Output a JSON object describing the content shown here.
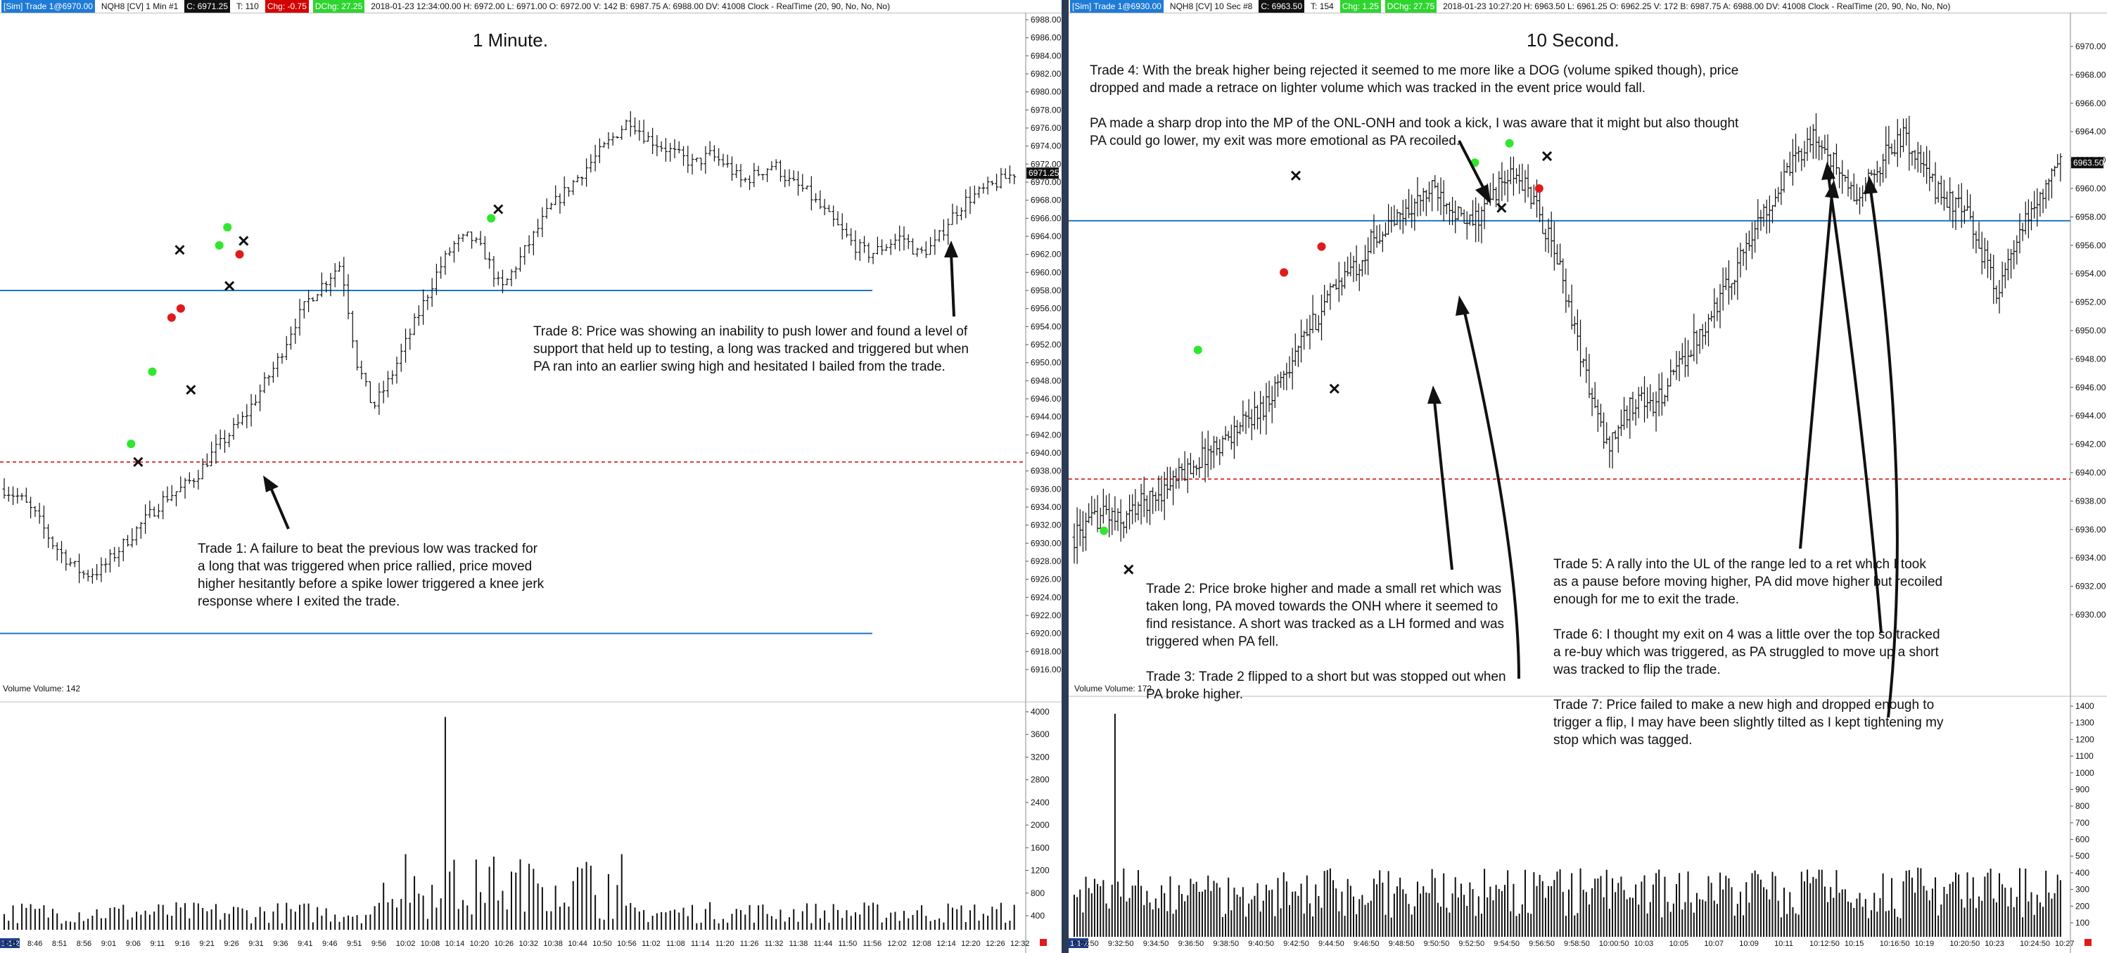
{
  "left": {
    "status": {
      "account": "[Sim]  Trade 1@6970.00",
      "instrument": "NQH8 [CV]  1 Min  #1",
      "close": "C: 6971.25",
      "ticks": "T: 110",
      "chg": "Chg: -0.75",
      "dchg": "DChg: 27.25",
      "info": "2018-01-23 12:34:00.00 H: 6972.00 L: 6971.00 O: 6972.00 V: 142 B: 6987.75 A: 6988.00 DV: 41008 Clock - RealTime   (20, 90, No, No, No)"
    },
    "title": "1 Minute.",
    "price_tag": "6971.25",
    "volume_label": "Volume  Volume: 142",
    "notes": {
      "trade1": "Trade 1:  A failure to beat the previous low was tracked for\na long that was triggered when price rallied, price moved\nhigher hesitantly before a spike lower triggered a knee jerk\nresponse where I exited the trade.",
      "trade8": "Trade 8:  Price was showing an inability to push lower and found a level of\nsupport that held up to testing, a long was tracked and triggered but when\nPA ran into an earlier swing high and hesitated I bailed from the trade."
    },
    "date_tag": "1-1-23",
    "time_ticks": [
      "8:41",
      "8:46",
      "8:51",
      "8:56",
      "9:01",
      "9:06",
      "9:11",
      "9:16",
      "9:21",
      "9:26",
      "9:31",
      "9:36",
      "9:41",
      "9:46",
      "9:51",
      "9:56",
      "10:02",
      "10:08",
      "10:14",
      "10:20",
      "10:26",
      "10:32",
      "10:38",
      "10:44",
      "10:50",
      "10:56",
      "11:02",
      "11:08",
      "11:14",
      "11:20",
      "11:26",
      "11:32",
      "11:38",
      "11:44",
      "11:50",
      "11:56",
      "12:02",
      "12:08",
      "12:14",
      "12:20",
      "12:26",
      "12:32"
    ],
    "price_ticks": [
      "6988.00",
      "6986.00",
      "6984.00",
      "6982.00",
      "6980.00",
      "6978.00",
      "6976.00",
      "6974.00",
      "6972.00",
      "6970.00",
      "6968.00",
      "6966.00",
      "6964.00",
      "6962.00",
      "6960.00",
      "6958.00",
      "6956.00",
      "6954.00",
      "6952.00",
      "6950.00",
      "6948.00",
      "6946.00",
      "6944.00",
      "6942.00",
      "6940.00",
      "6938.00",
      "6936.00",
      "6934.00",
      "6932.00",
      "6930.00",
      "6928.00",
      "6926.00",
      "6924.00",
      "6922.00",
      "6920.00",
      "6918.00",
      "6916.00"
    ],
    "volume_ticks": [
      "4000",
      "3600",
      "3200",
      "2800",
      "2400",
      "2000",
      "1600",
      "1200",
      "800",
      "400"
    ]
  },
  "right": {
    "status": {
      "account": "[Sim]  Trade 1@6930.00",
      "instrument": "NQH8 [CV]  10 Sec  #8",
      "close": "C: 6963.50",
      "ticks": "T: 154",
      "chg": "Chg: 1.25",
      "dchg": "DChg: 27.75",
      "info": "2018-01-23 10:27:20 H: 6963.50 L: 6961.25 O: 6962.25 V: 172 B: 6987.75 A: 6988.00 DV: 41008 Clock - RealTime   (20, 90, No, No, No)"
    },
    "title": "10 Second.",
    "price_tag": "6963.50",
    "volume_label": "Volume  Volume: 172",
    "notes": {
      "trade4": "Trade 4:  With the break higher being rejected it seemed to me more like a DOG (volume spiked though), price\ndropped and made a retrace on lighter volume which was tracked in the event price would fall.\n\nPA made a sharp drop into the MP of the ONL-ONH and took a kick, I was aware that it might but also thought\nPA could go lower, my exit was more emotional as PA recoiled.",
      "trade2": "Trade 2:  Price broke higher and made a small ret which was\ntaken long, PA moved towards the ONH where it seemed to\nfind resistance.  A short was tracked as a LH formed  and was\ntriggered when PA fell.\n\nTrade 3:  Trade 2 flipped to a short but was stopped out when\nPA broke higher.",
      "trade5": "Trade 5:  A rally into the UL of the range led to a ret which I took\nas a pause before moving higher, PA did move higher but recoiled\nenough for me to exit the trade.\n\nTrade 6:  I thought my exit on 4 was a little over the top so tracked\na re-buy which was triggered, as PA struggled to move up a short\nwas tracked to flip the trade.\n\nTrade 7:  Price failed to make a new high and dropped enough to\ntrigger a flip, I may have been slightly tilted as I kept tightening my\nstop which was tagged."
    },
    "date_tag": "1-1-23",
    "time_ticks": [
      "9:30:50",
      "9:32:50",
      "9:34:50",
      "9:36:50",
      "9:38:50",
      "9:40:50",
      "9:42:50",
      "9:44:50",
      "9:46:50",
      "9:48:50",
      "9:50:50",
      "9:52:50",
      "9:54:50",
      "9:56:50",
      "9:58:50",
      "10:00:50",
      "10:03",
      "10:05",
      "10:07",
      "10:09",
      "10:11",
      "10:12:50",
      "10:15",
      "10:16:50",
      "10:19",
      "10:20:50",
      "10:23",
      "10:24:50",
      "10:27"
    ],
    "price_ticks": [
      "6970.00",
      "6968.00",
      "6966.00",
      "6964.00",
      "6962.00",
      "6960.00",
      "6958.00",
      "6956.00",
      "6954.00",
      "6952.00",
      "6950.00",
      "6948.00",
      "6946.00",
      "6944.00",
      "6942.00",
      "6940.00",
      "6938.00",
      "6936.00",
      "6934.00",
      "6932.00",
      "6930.00"
    ],
    "volume_ticks": [
      "1400",
      "1300",
      "1200",
      "1100",
      "1000",
      "900",
      "800",
      "700",
      "600",
      "500",
      "400",
      "300",
      "200",
      "100"
    ]
  },
  "chart_data": [
    {
      "type": "candlestick",
      "title": "1 Minute.",
      "instrument": "NQH8",
      "timeframe": "1 Min",
      "x_range": [
        "8:41",
        "12:34"
      ],
      "ylim": [
        6916,
        6988
      ],
      "close_path": [
        6936,
        6935,
        6933,
        6930,
        6928,
        6926.5,
        6927,
        6929,
        6931,
        6933,
        6935,
        6936,
        6937.5,
        6940,
        6942,
        6944,
        6947,
        6950,
        6954,
        6957,
        6959,
        6961,
        6950,
        6945,
        6948,
        6952,
        6956,
        6960,
        6963,
        6964,
        6962,
        6958,
        6961,
        6964,
        6967,
        6969,
        6971,
        6973,
        6975,
        6977,
        6975,
        6974,
        6973,
        6972,
        6973,
        6972,
        6970,
        6971,
        6972,
        6970,
        6969,
        6967,
        6965,
        6963,
        6962,
        6963,
        6964,
        6962,
        6963,
        6966,
        6968,
        6969,
        6970,
        6971
      ],
      "horizontal_lines": [
        {
          "price": 6958.0,
          "style": "solid",
          "color": "#1f77c4"
        },
        {
          "price": 6939.0,
          "style": "dashed",
          "color": "#d40000"
        },
        {
          "price": 6920.0,
          "style": "solid",
          "color": "#1f77c4"
        }
      ],
      "volume_ylim": [
        0,
        4200
      ],
      "volume_peak": 4100
    },
    {
      "type": "candlestick",
      "title": "10 Second.",
      "instrument": "NQH8",
      "timeframe": "10 Sec",
      "x_range": [
        "9:30:50",
        "10:27:20"
      ],
      "ylim": [
        6928,
        6972
      ],
      "close_path": [
        6934,
        6935,
        6936,
        6935,
        6936.5,
        6937,
        6938,
        6939,
        6940,
        6941,
        6942,
        6943,
        6944,
        6946,
        6948,
        6950,
        6952,
        6954,
        6955,
        6957,
        6958,
        6959,
        6960,
        6961,
        6960,
        6958,
        6959,
        6961,
        6962,
        6961,
        6958,
        6955,
        6950,
        6945,
        6941,
        6943,
        6945,
        6944,
        6946,
        6948,
        6950,
        6952,
        6954,
        6957,
        6959,
        6961,
        6963,
        6965,
        6964,
        6962,
        6960,
        6962,
        6964,
        6965,
        6963,
        6961,
        6960,
        6959,
        6956,
        6953,
        6956,
        6959,
        6961,
        6963
      ],
      "horizontal_lines": [
        {
          "price": 6958.5,
          "style": "solid",
          "color": "#1f77c4"
        },
        {
          "price": 6938.5,
          "style": "dashed",
          "color": "#d40000"
        }
      ],
      "volume_ylim": [
        0,
        1500
      ],
      "volume_peak": 1450
    }
  ]
}
